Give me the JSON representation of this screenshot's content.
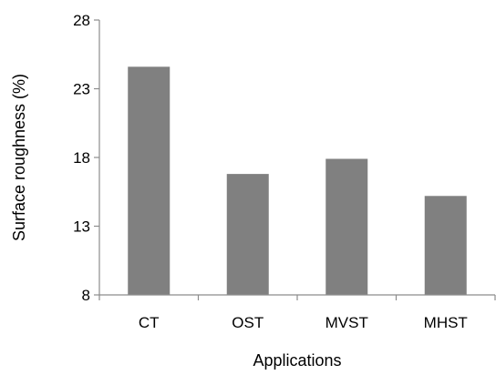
{
  "chart_data": {
    "type": "bar",
    "categories": [
      "CT",
      "OST",
      "MVST",
      "MHST"
    ],
    "values": [
      24.6,
      16.8,
      17.9,
      15.2
    ],
    "xlabel": "Applications",
    "ylabel": "Surface roughness (%)",
    "ylim": [
      8,
      28
    ],
    "yticks": [
      8,
      13,
      18,
      23,
      28
    ],
    "bar_color": "#808080",
    "grid": false,
    "legend": false
  }
}
